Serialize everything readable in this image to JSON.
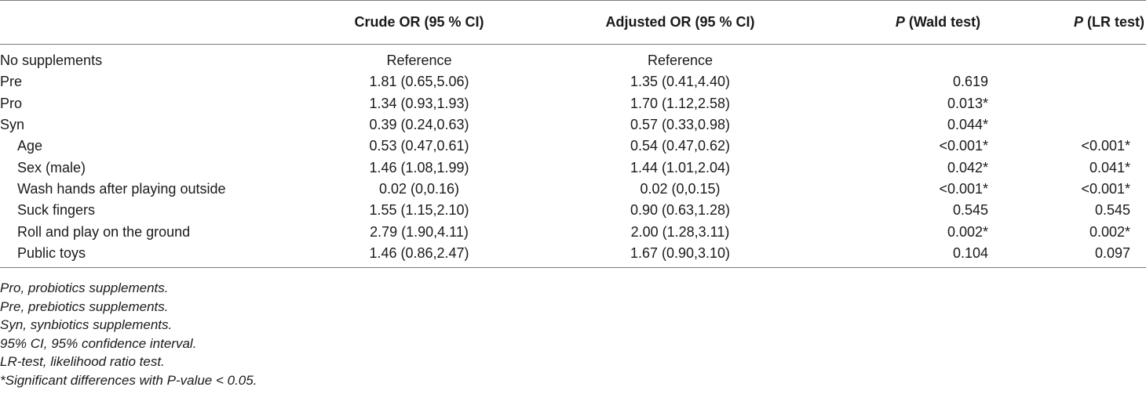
{
  "header": {
    "col0": "",
    "col1": "Crude OR (95 % CI)",
    "col2": "Adjusted OR (95 % CI)",
    "col3_italic": "P",
    "col3_rest": " (Wald test)",
    "col4_italic": "P",
    "col4_rest": " (LR test)"
  },
  "rows": [
    {
      "label": "No supplements",
      "crude": "Reference",
      "adjusted": "Reference",
      "wald": "",
      "lr": ""
    },
    {
      "label": "Pre",
      "crude": "1.81 (0.65,5.06)",
      "adjusted": "1.35 (0.41,4.40)",
      "wald": "0.619",
      "lr": ""
    },
    {
      "label": "Pro",
      "crude": "1.34 (0.93,1.93)",
      "adjusted": "1.70 (1.12,2.58)",
      "wald": "0.013*",
      "lr": ""
    },
    {
      "label": "Syn",
      "crude": "0.39 (0.24,0.63)",
      "adjusted": "0.57 (0.33,0.98)",
      "wald": "0.044*",
      "lr": ""
    },
    {
      "label": "Age",
      "crude": "0.53 (0.47,0.61)",
      "adjusted": "0.54 (0.47,0.62)",
      "wald": "<0.001*",
      "lr": "<0.001*"
    },
    {
      "label": "Sex (male)",
      "crude": "1.46 (1.08,1.99)",
      "adjusted": "1.44 (1.01,2.04)",
      "wald": "0.042*",
      "lr": "0.041*"
    },
    {
      "label": "Wash hands after playing outside",
      "crude": "0.02 (0,0.16)",
      "adjusted": "0.02 (0,0.15)",
      "wald": "<0.001*",
      "lr": "<0.001*"
    },
    {
      "label": "Suck fingers",
      "crude": "1.55 (1.15,2.10)",
      "adjusted": "0.90 (0.63,1.28)",
      "wald": "0.545",
      "lr": "0.545"
    },
    {
      "label": "Roll and play on the ground",
      "crude": "2.79 (1.90,4.11)",
      "adjusted": "2.00 (1.28,3.11)",
      "wald": "0.002*",
      "lr": "0.002*"
    },
    {
      "label": "Public toys",
      "crude": "1.46 (0.86,2.47)",
      "adjusted": "1.67 (0.90,3.10)",
      "wald": "0.104",
      "lr": "0.097"
    }
  ],
  "notes": [
    "Pro, probiotics supplements.",
    "Pre, prebiotics supplements.",
    "Syn, synbiotics supplements.",
    "95% CI, 95% confidence interval.",
    "LR-test, likelihood ratio test.",
    "*Significant differences with P-value < 0.05."
  ]
}
